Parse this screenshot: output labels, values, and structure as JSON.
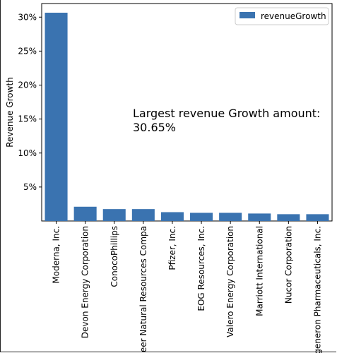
{
  "chart_data": {
    "type": "bar",
    "categories": [
      "Moderna, Inc.",
      "Devon Energy Corporation",
      "ConocoPhillips",
      "Pioneer Natural Resources Compa",
      "Pfizer, Inc.",
      "EOG Resources, Inc.",
      "Valero Energy Corporation",
      "Marriott International",
      "Nucor Corporation",
      "Regeneron Pharmaceuticals, Inc."
    ],
    "series": [
      {
        "name": "revenueGrowth",
        "values": [
          30.65,
          2.1,
          1.75,
          1.75,
          1.3,
          1.2,
          1.2,
          1.1,
          1.0,
          1.0
        ]
      }
    ],
    "ylabel": "Revenue Growth",
    "xlabel": "",
    "ylim": [
      0,
      32
    ],
    "yticks": [
      5,
      10,
      15,
      20,
      25,
      30
    ],
    "ytick_labels": [
      "5%",
      "10%",
      "15%",
      "20%",
      "25%",
      "30%"
    ],
    "annotation_line1": "Largest revenue Growth amount:",
    "annotation_line2": "30.65%",
    "legend_position": "top-right",
    "bar_color": "#3a73b0",
    "grid": false
  }
}
